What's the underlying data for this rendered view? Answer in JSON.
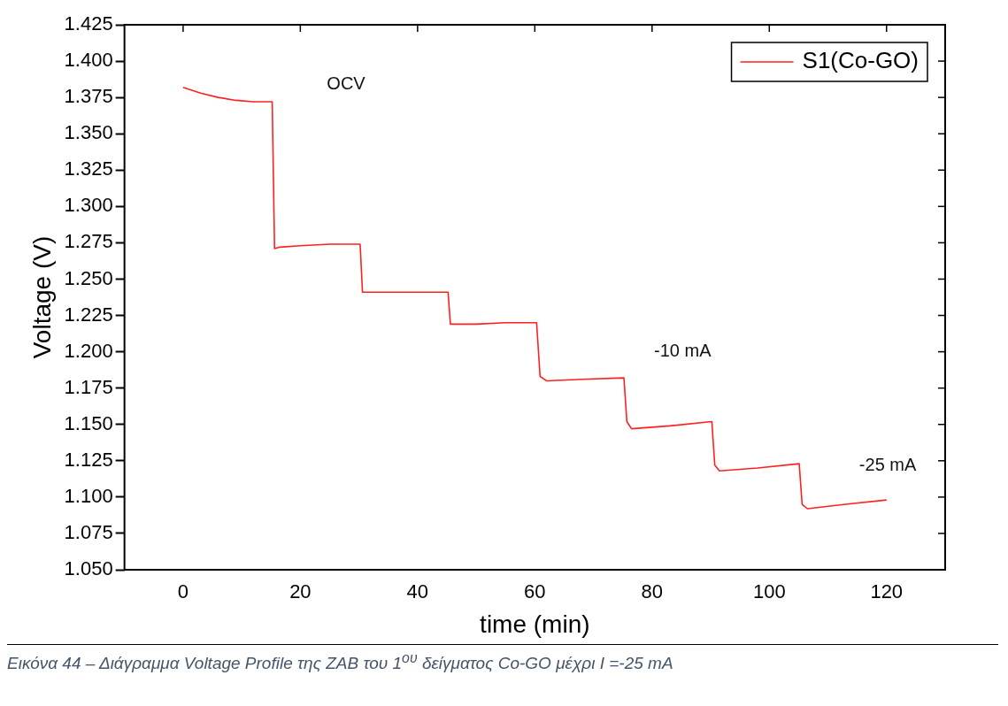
{
  "chart_data": {
    "type": "line",
    "xlabel": "time (min)",
    "ylabel": "Voltage (V)",
    "x": [
      0,
      3,
      6,
      9,
      12,
      15.2,
      15.6,
      16.5,
      20,
      25,
      30.2,
      30.6,
      35,
      40,
      45.2,
      45.6,
      50,
      55,
      60.3,
      60.9,
      62,
      68,
      75.2,
      75.7,
      76.5,
      83,
      90.2,
      90.7,
      91.5,
      98,
      105.1,
      105.6,
      106.5,
      113,
      120
    ],
    "series": [
      {
        "name": "S1(Co-GO)",
        "color": "#ff2020",
        "values": [
          1.382,
          1.378,
          1.375,
          1.373,
          1.372,
          1.372,
          1.271,
          1.272,
          1.273,
          1.274,
          1.274,
          1.241,
          1.241,
          1.241,
          1.241,
          1.219,
          1.219,
          1.22,
          1.22,
          1.183,
          1.18,
          1.181,
          1.182,
          1.152,
          1.147,
          1.149,
          1.152,
          1.122,
          1.118,
          1.12,
          1.123,
          1.095,
          1.092,
          1.095,
          1.098
        ]
      }
    ],
    "xlim": [
      -10,
      130
    ],
    "xticks": [
      0,
      20,
      40,
      60,
      80,
      100,
      120
    ],
    "ylim": [
      1.05,
      1.425
    ],
    "yticks": [
      {
        "value": 1.05,
        "label": "1.050"
      },
      {
        "value": 1.075,
        "label": "1.075"
      },
      {
        "value": 1.1,
        "label": "1.100"
      },
      {
        "value": 1.125,
        "label": "1.125"
      },
      {
        "value": 1.15,
        "label": "1.150"
      },
      {
        "value": 1.175,
        "label": "1.175"
      },
      {
        "value": 1.2,
        "label": "1.200"
      },
      {
        "value": 1.225,
        "label": "1.225"
      },
      {
        "value": 1.25,
        "label": "1.250"
      },
      {
        "value": 1.275,
        "label": "1.275"
      },
      {
        "value": 1.3,
        "label": "1.300"
      },
      {
        "value": 1.325,
        "label": "1.325"
      },
      {
        "value": 1.35,
        "label": "1.350"
      },
      {
        "value": 1.375,
        "label": "1.375"
      },
      {
        "value": 1.4,
        "label": "1.400"
      },
      {
        "value": 1.425,
        "label": "1.425"
      }
    ],
    "annotations": [
      "OCV",
      "-10 mA",
      "-25 mA",
      "Εικόνα 44 – Διάγραμμα Voltage Profile της ZAB του 1$^{ου}$ δείγματος Co-GO μέχρι I =-25 mA"
    ],
    "legend": "top right",
    "grid": false,
    "marker": "none",
    "line_style": "solid"
  }
}
